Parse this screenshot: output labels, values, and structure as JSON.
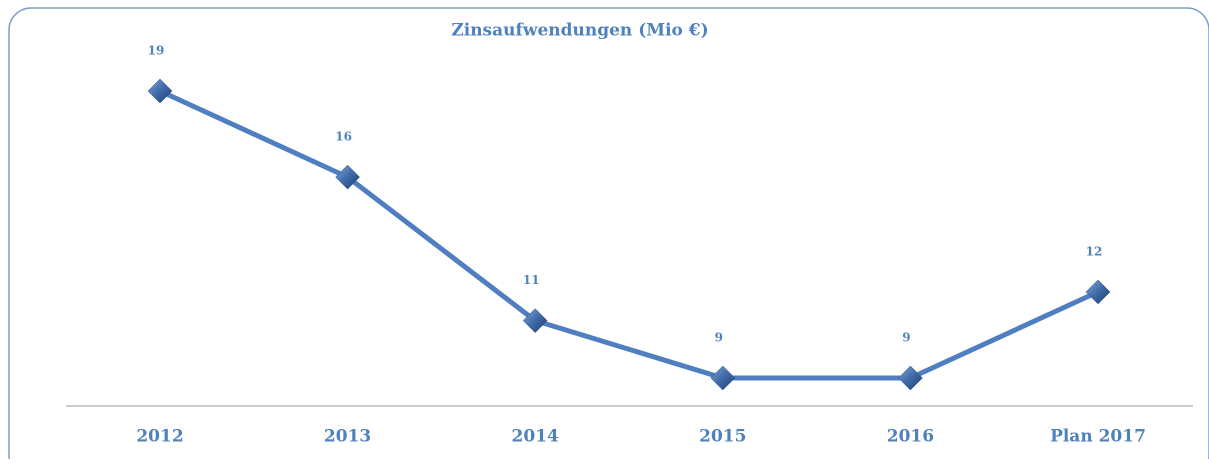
{
  "chart_data": {
    "type": "line",
    "title": "Zinsaufwendungen (Mio €)",
    "categories": [
      "2012",
      "2013",
      "2014",
      "2015",
      "2016",
      "Plan 2017"
    ],
    "values": [
      19,
      16,
      11,
      9,
      9,
      12
    ],
    "color": "#4f7fc0"
  }
}
